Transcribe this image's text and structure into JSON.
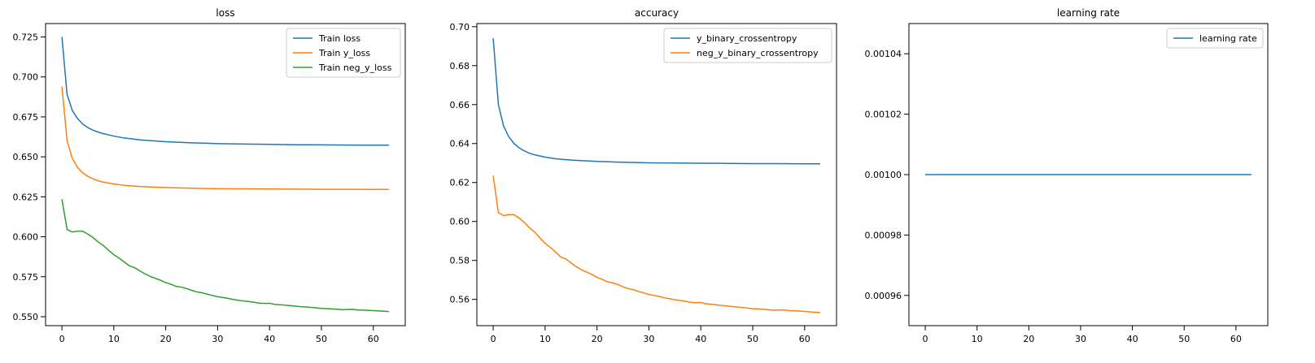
{
  "chart_data": [
    {
      "type": "line",
      "title": "loss",
      "xlabel": "",
      "ylabel": "",
      "xlim": [
        -3.15,
        66.15
      ],
      "ylim": [
        0.5444,
        0.7334
      ],
      "xticks": [
        0,
        10,
        20,
        30,
        40,
        50,
        60
      ],
      "yticks": [
        0.55,
        0.575,
        0.6,
        0.625,
        0.65,
        0.675,
        0.7,
        0.725
      ],
      "ytick_labels": [
        "0.550",
        "0.575",
        "0.600",
        "0.625",
        "0.650",
        "0.675",
        "0.700",
        "0.725"
      ],
      "grid": false,
      "legend_position": "top-right",
      "series": [
        {
          "name": "Train loss",
          "color": "#1f77b4",
          "x": [
            0,
            1,
            2,
            3,
            4,
            5,
            6,
            7,
            8,
            10,
            12,
            15,
            20,
            25,
            30,
            35,
            40,
            45,
            50,
            55,
            60,
            63
          ],
          "y": [
            0.725,
            0.689,
            0.679,
            0.674,
            0.6705,
            0.6683,
            0.6667,
            0.6655,
            0.6645,
            0.663,
            0.6618,
            0.6606,
            0.6595,
            0.6588,
            0.6583,
            0.658,
            0.6578,
            0.6576,
            0.6575,
            0.6574,
            0.6573,
            0.6573
          ]
        },
        {
          "name": "Train y_loss",
          "color": "#ff7f0e",
          "x": [
            0,
            1,
            2,
            3,
            4,
            5,
            6,
            7,
            8,
            10,
            12,
            15,
            20,
            25,
            30,
            35,
            40,
            45,
            50,
            55,
            60,
            63
          ],
          "y": [
            0.694,
            0.66,
            0.649,
            0.6435,
            0.64,
            0.6378,
            0.6362,
            0.635,
            0.6342,
            0.633,
            0.6322,
            0.6315,
            0.6308,
            0.6304,
            0.6301,
            0.63,
            0.6299,
            0.6298,
            0.6297,
            0.6297,
            0.6296,
            0.6296
          ]
        },
        {
          "name": "Train neg_y_loss",
          "color": "#2ca02c",
          "x": [
            0,
            1,
            2,
            3,
            4,
            5,
            6,
            7,
            8,
            9,
            10,
            11,
            12,
            13,
            14,
            15,
            16,
            17,
            18,
            19,
            20,
            21,
            22,
            23,
            24,
            25,
            26,
            27,
            28,
            29,
            30,
            31,
            32,
            33,
            34,
            35,
            36,
            37,
            38,
            39,
            40,
            41,
            42,
            43,
            44,
            45,
            46,
            47,
            48,
            49,
            50,
            51,
            52,
            53,
            54,
            55,
            56,
            57,
            58,
            59,
            60,
            61,
            62,
            63
          ],
          "y": [
            0.6235,
            0.6045,
            0.603,
            0.6035,
            0.6035,
            0.6017,
            0.5995,
            0.5967,
            0.5945,
            0.5915,
            0.5888,
            0.5867,
            0.5843,
            0.5818,
            0.5807,
            0.5787,
            0.5768,
            0.5752,
            0.574,
            0.5728,
            0.5713,
            0.5703,
            0.569,
            0.5685,
            0.5676,
            0.5665,
            0.5655,
            0.565,
            0.5641,
            0.5633,
            0.5625,
            0.562,
            0.5615,
            0.5608,
            0.5603,
            0.5598,
            0.5595,
            0.559,
            0.5585,
            0.5583,
            0.5584,
            0.5577,
            0.5575,
            0.5572,
            0.5569,
            0.5566,
            0.5563,
            0.5561,
            0.5558,
            0.5555,
            0.5552,
            0.5551,
            0.5549,
            0.5547,
            0.5544,
            0.5545,
            0.5546,
            0.5542,
            0.5541,
            0.554,
            0.5538,
            0.5536,
            0.5534,
            0.5532
          ]
        }
      ]
    },
    {
      "type": "line",
      "title": "accuracy",
      "xlabel": "",
      "ylabel": "",
      "xlim": [
        -3.15,
        66.15
      ],
      "ylim": [
        0.5465,
        0.7016
      ],
      "xticks": [
        0,
        10,
        20,
        30,
        40,
        50,
        60
      ],
      "yticks": [
        0.56,
        0.58,
        0.6,
        0.62,
        0.64,
        0.66,
        0.68,
        0.7
      ],
      "ytick_labels": [
        "0.56",
        "0.58",
        "0.60",
        "0.62",
        "0.64",
        "0.66",
        "0.68",
        "0.70"
      ],
      "grid": false,
      "legend_position": "top-right",
      "series": [
        {
          "name": "y_binary_crossentropy",
          "color": "#1f77b4",
          "x": [
            0,
            1,
            2,
            3,
            4,
            5,
            6,
            7,
            8,
            10,
            12,
            15,
            20,
            25,
            30,
            35,
            40,
            45,
            50,
            55,
            60,
            63
          ],
          "y": [
            0.694,
            0.66,
            0.649,
            0.6435,
            0.64,
            0.6378,
            0.6362,
            0.635,
            0.6342,
            0.633,
            0.6322,
            0.6315,
            0.6308,
            0.6304,
            0.6301,
            0.63,
            0.6299,
            0.6298,
            0.6297,
            0.6297,
            0.6296,
            0.6296
          ]
        },
        {
          "name": "neg_y_binary_crossentropy",
          "color": "#ff7f0e",
          "x": [
            0,
            1,
            2,
            3,
            4,
            5,
            6,
            7,
            8,
            9,
            10,
            11,
            12,
            13,
            14,
            15,
            16,
            17,
            18,
            19,
            20,
            21,
            22,
            23,
            24,
            25,
            26,
            27,
            28,
            29,
            30,
            31,
            32,
            33,
            34,
            35,
            36,
            37,
            38,
            39,
            40,
            41,
            42,
            43,
            44,
            45,
            46,
            47,
            48,
            49,
            50,
            51,
            52,
            53,
            54,
            55,
            56,
            57,
            58,
            59,
            60,
            61,
            62,
            63
          ],
          "y": [
            0.6235,
            0.6045,
            0.603,
            0.6035,
            0.6035,
            0.6017,
            0.5995,
            0.5967,
            0.5945,
            0.5915,
            0.5888,
            0.5867,
            0.5843,
            0.5818,
            0.5807,
            0.5787,
            0.5768,
            0.5752,
            0.574,
            0.5728,
            0.5713,
            0.5703,
            0.569,
            0.5685,
            0.5676,
            0.5665,
            0.5655,
            0.565,
            0.5641,
            0.5633,
            0.5625,
            0.562,
            0.5615,
            0.5608,
            0.5603,
            0.5598,
            0.5595,
            0.559,
            0.5585,
            0.5583,
            0.5584,
            0.5577,
            0.5575,
            0.5572,
            0.5569,
            0.5566,
            0.5563,
            0.5561,
            0.5558,
            0.5555,
            0.5552,
            0.5551,
            0.5549,
            0.5547,
            0.5544,
            0.5545,
            0.5546,
            0.5542,
            0.5541,
            0.554,
            0.5538,
            0.5536,
            0.5534,
            0.5532
          ]
        }
      ]
    },
    {
      "type": "line",
      "title": "learning rate",
      "xlabel": "",
      "ylabel": "",
      "xlim": [
        -3.15,
        66.15
      ],
      "ylim": [
        0.00095,
        0.00105
      ],
      "xticks": [
        0,
        10,
        20,
        30,
        40,
        50,
        60
      ],
      "yticks": [
        0.00096,
        0.00098,
        0.001,
        0.00102,
        0.00104
      ],
      "ytick_labels": [
        "0.00096",
        "0.00098",
        "0.00100",
        "0.00102",
        "0.00104"
      ],
      "grid": false,
      "legend_position": "top-right",
      "series": [
        {
          "name": "learning rate",
          "color": "#1f77b4",
          "x": [
            0,
            63
          ],
          "y": [
            0.001,
            0.001
          ]
        }
      ]
    }
  ]
}
